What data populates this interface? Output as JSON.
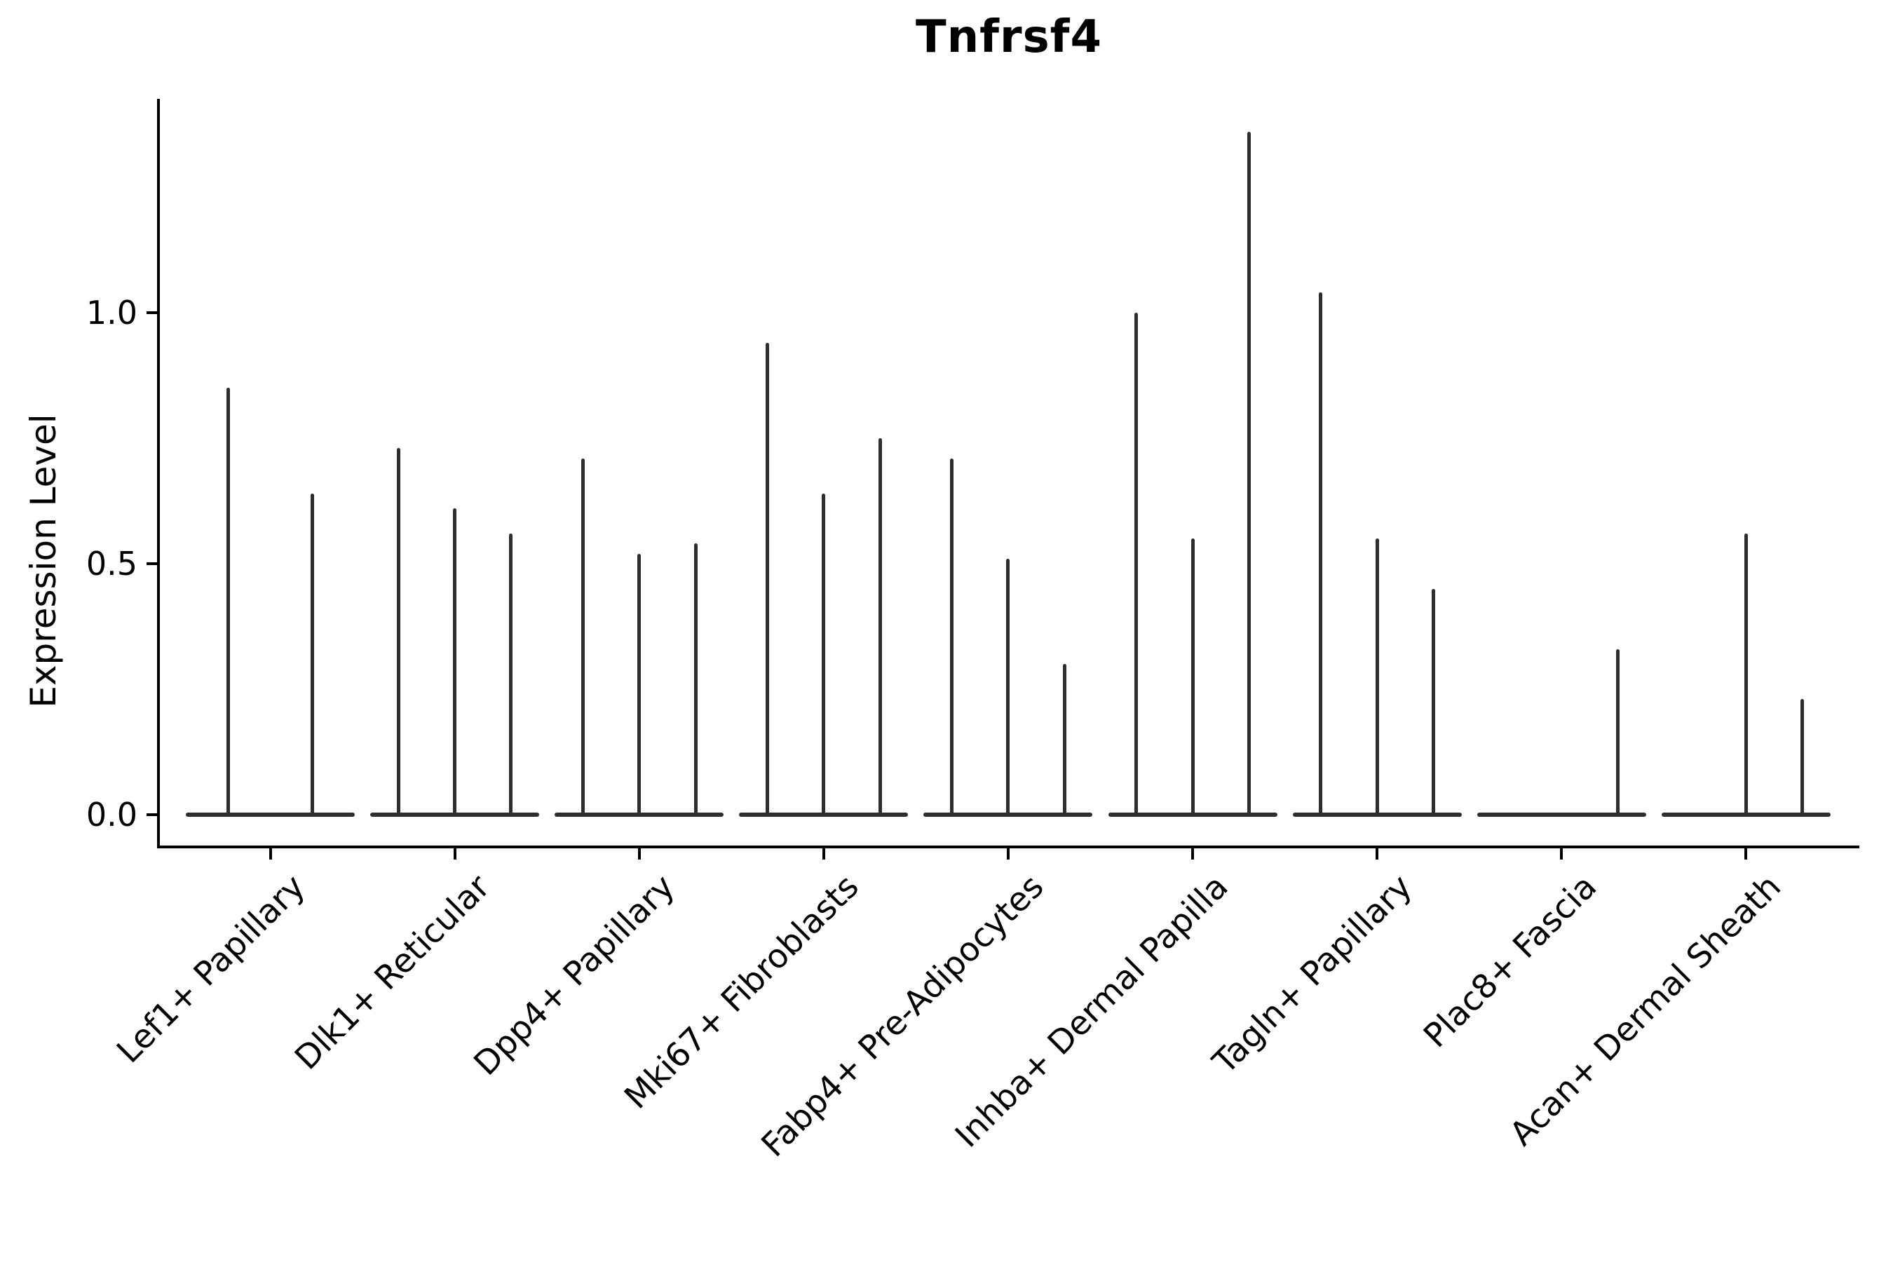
{
  "title": "Tnfrsf4",
  "axes": {
    "y_label": "Expression Level",
    "y_ticks": [
      "0.0",
      "0.5",
      "1.0"
    ]
  },
  "chart_data": {
    "type": "violin",
    "title": "Tnfrsf4",
    "xlabel": "",
    "ylabel": "Expression Level",
    "ylim": [
      0,
      1.42
    ],
    "yticks": [
      0.0,
      0.5,
      1.0
    ],
    "grid": false,
    "legend": "none",
    "orientation": "vertical",
    "note": "Needle-thin violins on flat zero baselines; 'peaks' are the max expression level of each sub-violin within a category (0 = flat baseline, no spike)",
    "categories": [
      "Lef1+ Papillary",
      "Dlk1+ Reticular",
      "Dpp4+ Papillary",
      "Mki67+ Fibroblasts",
      "Fabp4+ Pre-Adipocytes",
      "Inhba+ Dermal Papilla",
      "Tagln+ Papillary",
      "Plac8+ Fascia",
      "Acan+ Dermal Sheath"
    ],
    "violins": [
      {
        "category": "Lef1+ Papillary",
        "peaks": [
          0.85,
          0.64
        ]
      },
      {
        "category": "Dlk1+ Reticular",
        "peaks": [
          0.73,
          0.61,
          0.56
        ]
      },
      {
        "category": "Dpp4+ Papillary",
        "peaks": [
          0.71,
          0.52,
          0.54
        ]
      },
      {
        "category": "Mki67+ Fibroblasts",
        "peaks": [
          0.94,
          0.64,
          0.75
        ]
      },
      {
        "category": "Fabp4+ Pre-Adipocytes",
        "peaks": [
          0.71,
          0.51,
          0.3
        ]
      },
      {
        "category": "Inhba+ Dermal Papilla",
        "peaks": [
          1.0,
          0.55,
          1.36
        ]
      },
      {
        "category": "Tagln+ Papillary",
        "peaks": [
          1.04,
          0.55,
          0.45
        ]
      },
      {
        "category": "Plac8+ Fascia",
        "peaks": [
          0,
          0,
          0.33
        ]
      },
      {
        "category": "Acan+ Dermal Sheath",
        "peaks": [
          0,
          0.56,
          0.23
        ]
      }
    ]
  },
  "style": {
    "line_color": "#2e2e2e",
    "axis_color": "#000000",
    "text_color": "#000000",
    "background": "#ffffff"
  }
}
